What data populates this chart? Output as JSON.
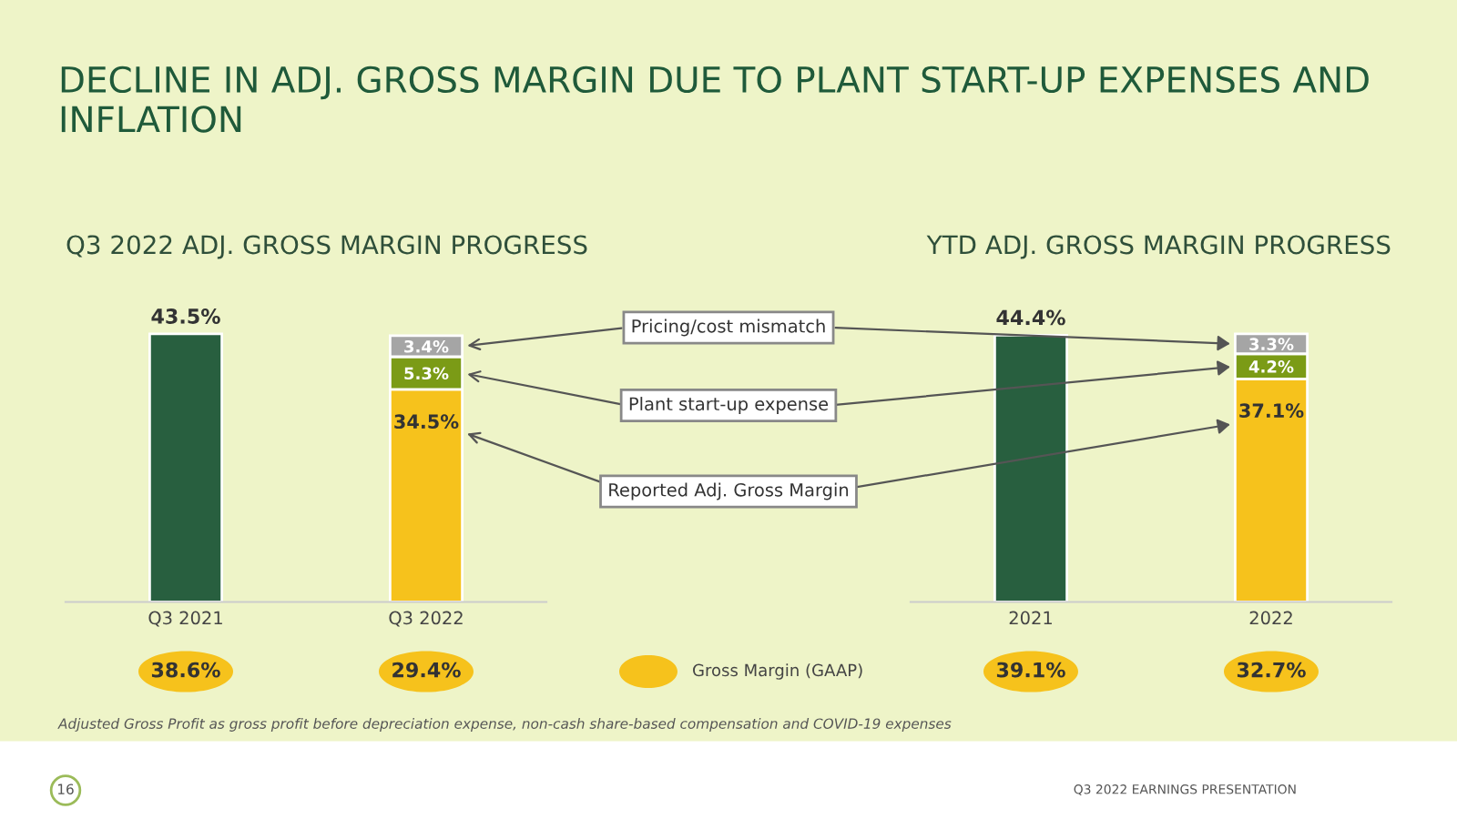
{
  "chart_data": [
    {
      "type": "bar",
      "title": "Q3 2022 ADJ. GROSS MARGIN PROGRESS",
      "categories": [
        "Q3 2021",
        "Q3 2022"
      ],
      "stacked": true,
      "series": [
        {
          "name": "Reported Adj. Gross Margin",
          "colors": [
            "#285f3f",
            "#f6c21c"
          ],
          "values": [
            43.5,
            34.5
          ],
          "value_labels": [
            "43.5%",
            "34.5%"
          ]
        },
        {
          "name": "Plant start-up expense",
          "color": "#7b9b16",
          "values": [
            null,
            5.3
          ],
          "value_labels": [
            null,
            "5.3%"
          ]
        },
        {
          "name": "Pricing/cost mismatch",
          "color": "#a5a5a5",
          "values": [
            null,
            3.4
          ],
          "value_labels": [
            null,
            "3.4%"
          ]
        }
      ],
      "annotations": [
        "DECLINE IN ADJ. GROSS MARGIN DUE TO PLANT START-UP EXPENSES AND INFLATION",
        "Adjusted Gross Profit as gross profit before depreciation expense, non-cash share-based compensation and COVID-19 expenses",
        "Q3 2022 EARNINGS PRESENTATION",
        "16",
        "Gross Margin (GAAP)",
        "38.6%",
        "29.4%"
      ]
    },
    {
      "type": "bar",
      "title": "YTD ADJ. GROSS MARGIN PROGRESS",
      "categories": [
        "2021",
        "2022"
      ],
      "stacked": true,
      "series": [
        {
          "colors": [
            "#285f3f",
            "#f6c21c"
          ],
          "values": [
            44.4,
            37.1
          ],
          "value_labels": [
            "44.4%",
            "37.1%"
          ]
        },
        {
          "color": "#7b9b16",
          "values": [
            null,
            4.2
          ],
          "value_labels": [
            null,
            "4.2%"
          ]
        },
        {
          "color": "#a5a5a5",
          "values": [
            null,
            3.3
          ],
          "value_labels": [
            null,
            "3.3%"
          ]
        }
      ],
      "annotations": [
        "39.1%",
        "32.7%"
      ]
    }
  ]
}
